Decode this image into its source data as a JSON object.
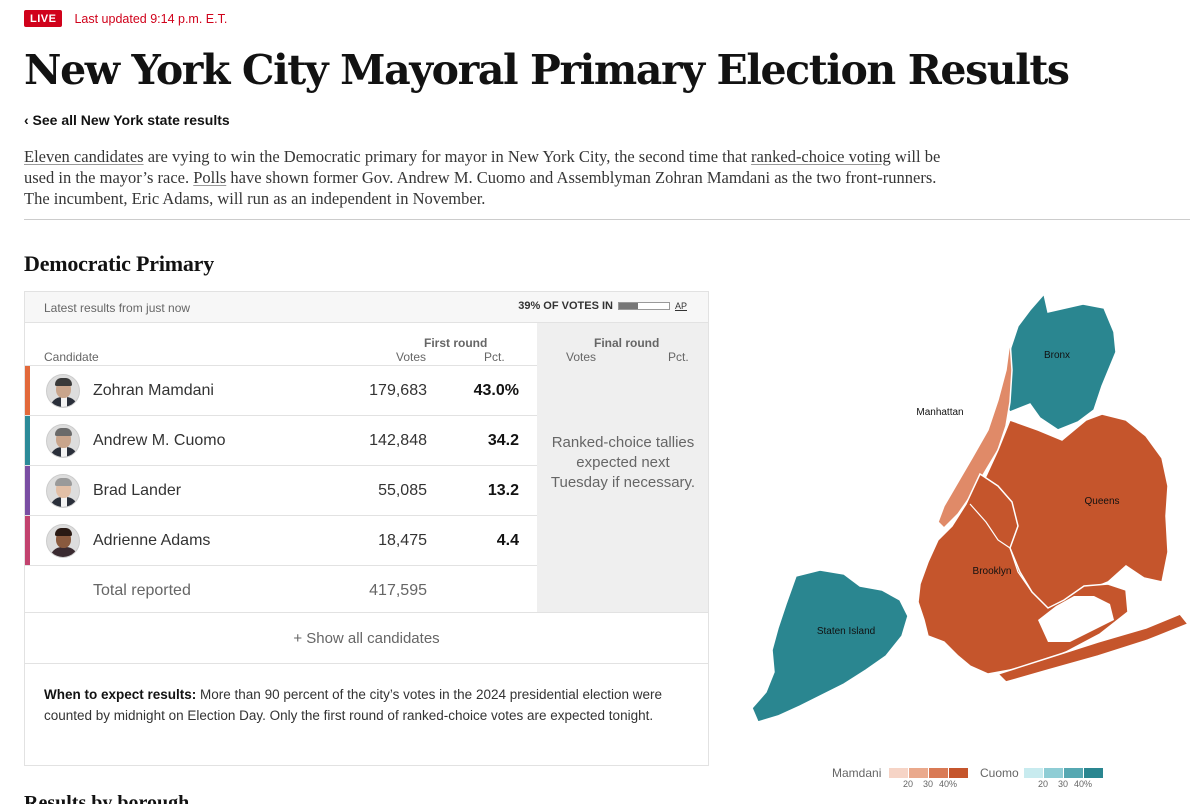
{
  "header": {
    "live_label": "LIVE",
    "updated": "Last updated 9:14 p.m. E.T.",
    "title": "New York City Mayoral Primary Election Results",
    "back_link": "‹ See all New York state results"
  },
  "intro": {
    "link1": "Eleven candidates",
    "text1": " are vying to win the Democratic primary for mayor in New York City, the second time that ",
    "link2": "ranked-choice voting",
    "text2": " will be used in the mayor’s race. ",
    "link3": "Polls",
    "text3": " have shown former Gov. Andrew M. Cuomo and Assemblyman Zohran Mamdani as the two front-runners. The incumbent, Eric Adams, will run as an independent in November."
  },
  "section_title": "Democratic Primary",
  "results": {
    "latest": "Latest results from just now",
    "votes_in": "39% OF VOTES IN",
    "votes_in_fraction": 0.39,
    "ap": "AP",
    "first_round": "First round",
    "final_round": "Final round",
    "col_candidate": "Candidate",
    "col_votes": "Votes",
    "col_pct": "Pct.",
    "candidates": [
      {
        "name": "Zohran Mamdani",
        "votes": "179,683",
        "pct": "43.0%",
        "color": "#e2693a"
      },
      {
        "name": "Andrew M. Cuomo",
        "votes": "142,848",
        "pct": "34.2",
        "color": "#2b8a98"
      },
      {
        "name": "Brad Lander",
        "votes": "55,085",
        "pct": "13.2",
        "color": "#7a4ea3"
      },
      {
        "name": "Adrienne Adams",
        "votes": "18,475",
        "pct": "4.4",
        "color": "#c2426e"
      }
    ],
    "total_label": "Total reported",
    "total_votes": "417,595",
    "ranked_note": "Ranked-choice tallies expected next Tuesday if necessary.",
    "show_all": "+ Show all candidates",
    "expect_label": "When to expect results:",
    "expect_text": " More than 90 percent of the city’s votes in the 2024 presidential election were counted by midnight on Election Day. Only the first round of ranked-choice votes are expected tonight."
  },
  "map": {
    "boroughs": {
      "bronx": "Bronx",
      "manhattan": "Manhattan",
      "queens": "Queens",
      "brooklyn": "Brooklyn",
      "staten_island": "Staten Island"
    },
    "colors": {
      "mamdani_dark": "#c5552c",
      "mamdani_light": "#e08a68",
      "cuomo": "#2a8690"
    }
  },
  "legend": {
    "mamdani": "Mamdani",
    "cuomo": "Cuomo",
    "ticks": [
      "20",
      "30",
      "40%"
    ],
    "mamdani_colors": [
      "#f6d4c6",
      "#eaa98c",
      "#d97a55",
      "#c5552c"
    ],
    "cuomo_colors": [
      "#c8ebef",
      "#8fcdd5",
      "#56a8b2",
      "#2a8690"
    ]
  },
  "next_section": "Results by borough"
}
